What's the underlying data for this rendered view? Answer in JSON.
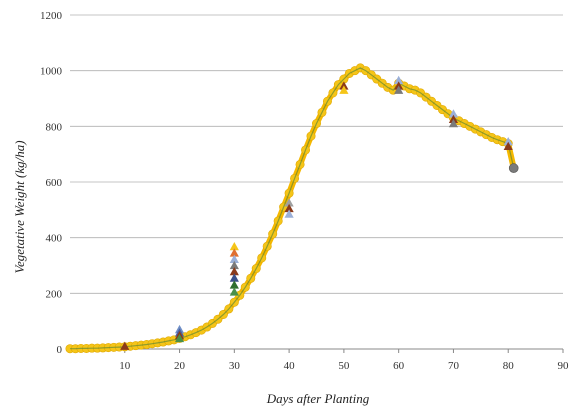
{
  "chart_data": {
    "type": "scatter",
    "xlabel": "Days after Planting",
    "ylabel": "Vegetative Weight (kg/ha)",
    "xlim": [
      0,
      90
    ],
    "ylim": [
      0,
      1200
    ],
    "xticks": [
      10,
      20,
      30,
      40,
      50,
      60,
      70,
      80,
      90
    ],
    "xtick_labels": [
      "10",
      "20",
      "30",
      "40",
      "50",
      "60",
      "70",
      "80",
      "90"
    ],
    "yticks": [
      0,
      200,
      400,
      600,
      800,
      1000,
      1200
    ],
    "ytick_labels": [
      "0",
      "200",
      "400",
      "600",
      "800",
      "1000",
      "1200"
    ],
    "grid": "horizontal",
    "legend": "none",
    "colors": {
      "simulated_line": "#f5b800",
      "simulated_marker": "#f5c518",
      "inner_line": "#3c7a3c",
      "grid": "#b0b0b0",
      "axis": "#888888"
    },
    "simulated": {
      "x": [
        0,
        1,
        2,
        3,
        4,
        5,
        6,
        7,
        8,
        9,
        10,
        11,
        12,
        13,
        14,
        15,
        16,
        17,
        18,
        19,
        20,
        21,
        22,
        23,
        24,
        25,
        26,
        27,
        28,
        29,
        30,
        31,
        32,
        33,
        34,
        35,
        36,
        37,
        38,
        39,
        40,
        41,
        42,
        43,
        44,
        45,
        46,
        47,
        48,
        49,
        50,
        51,
        52,
        53,
        54,
        55,
        56,
        57,
        58,
        59,
        60,
        61,
        62,
        63,
        64,
        65,
        66,
        67,
        68,
        69,
        70,
        71,
        72,
        73,
        74,
        75,
        76,
        77,
        78,
        79,
        80,
        81
      ],
      "y": [
        1,
        1,
        2,
        2,
        3,
        3,
        4,
        5,
        6,
        7,
        8,
        10,
        12,
        14,
        16,
        19,
        22,
        25,
        29,
        33,
        38,
        44,
        51,
        59,
        68,
        79,
        92,
        107,
        124,
        144,
        168,
        193,
        222,
        254,
        289,
        327,
        369,
        413,
        460,
        510,
        560,
        613,
        663,
        715,
        765,
        810,
        850,
        890,
        920,
        950,
        970,
        990,
        1000,
        1010,
        1000,
        985,
        970,
        955,
        940,
        930,
        955,
        945,
        935,
        930,
        920,
        905,
        890,
        875,
        860,
        845,
        830,
        820,
        810,
        800,
        790,
        780,
        770,
        760,
        752,
        745,
        738,
        650
      ]
    },
    "observed": [
      {
        "x": 10,
        "y": 10,
        "color": "#8b3a1a",
        "marker": "triangle"
      },
      {
        "x": 20,
        "y": 70,
        "color": "#6f8fc7",
        "marker": "triangle"
      },
      {
        "x": 20,
        "y": 58,
        "color": "#4a5fa0",
        "marker": "triangle"
      },
      {
        "x": 20,
        "y": 48,
        "color": "#8b3a1a",
        "marker": "triangle"
      },
      {
        "x": 20,
        "y": 38,
        "color": "#4a8f4a",
        "marker": "triangle"
      },
      {
        "x": 30,
        "y": 368,
        "color": "#f5c518",
        "marker": "triangle"
      },
      {
        "x": 30,
        "y": 345,
        "color": "#e07030",
        "marker": "triangle"
      },
      {
        "x": 30,
        "y": 322,
        "color": "#9bb0d8",
        "marker": "triangle"
      },
      {
        "x": 30,
        "y": 300,
        "color": "#7a7a7a",
        "marker": "triangle"
      },
      {
        "x": 30,
        "y": 278,
        "color": "#8b3a1a",
        "marker": "triangle"
      },
      {
        "x": 30,
        "y": 255,
        "color": "#3a4f8a",
        "marker": "triangle"
      },
      {
        "x": 30,
        "y": 230,
        "color": "#2e6e2e",
        "marker": "triangle"
      },
      {
        "x": 30,
        "y": 205,
        "color": "#4a8f4a",
        "marker": "triangle"
      },
      {
        "x": 40,
        "y": 525,
        "color": "#a0a0a0",
        "marker": "triangle"
      },
      {
        "x": 40,
        "y": 505,
        "color": "#8b3a1a",
        "marker": "triangle"
      },
      {
        "x": 40,
        "y": 485,
        "color": "#9bb0d8",
        "marker": "triangle"
      },
      {
        "x": 50,
        "y": 945,
        "color": "#8b3a1a",
        "marker": "triangle"
      },
      {
        "x": 50,
        "y": 930,
        "color": "#f5c518",
        "marker": "triangle"
      },
      {
        "x": 60,
        "y": 965,
        "color": "#9bb0d8",
        "marker": "triangle"
      },
      {
        "x": 60,
        "y": 945,
        "color": "#8b3a1a",
        "marker": "triangle"
      },
      {
        "x": 60,
        "y": 930,
        "color": "#7a7a7a",
        "marker": "triangle"
      },
      {
        "x": 70,
        "y": 845,
        "color": "#9bb0d8",
        "marker": "triangle"
      },
      {
        "x": 70,
        "y": 825,
        "color": "#8b3a1a",
        "marker": "triangle"
      },
      {
        "x": 70,
        "y": 810,
        "color": "#7a7a7a",
        "marker": "triangle"
      },
      {
        "x": 80,
        "y": 745,
        "color": "#9bb0d8",
        "marker": "triangle"
      },
      {
        "x": 80,
        "y": 728,
        "color": "#8b3a1a",
        "marker": "triangle"
      },
      {
        "x": 81,
        "y": 650,
        "color": "#7a7a7a",
        "marker": "circle"
      }
    ]
  }
}
